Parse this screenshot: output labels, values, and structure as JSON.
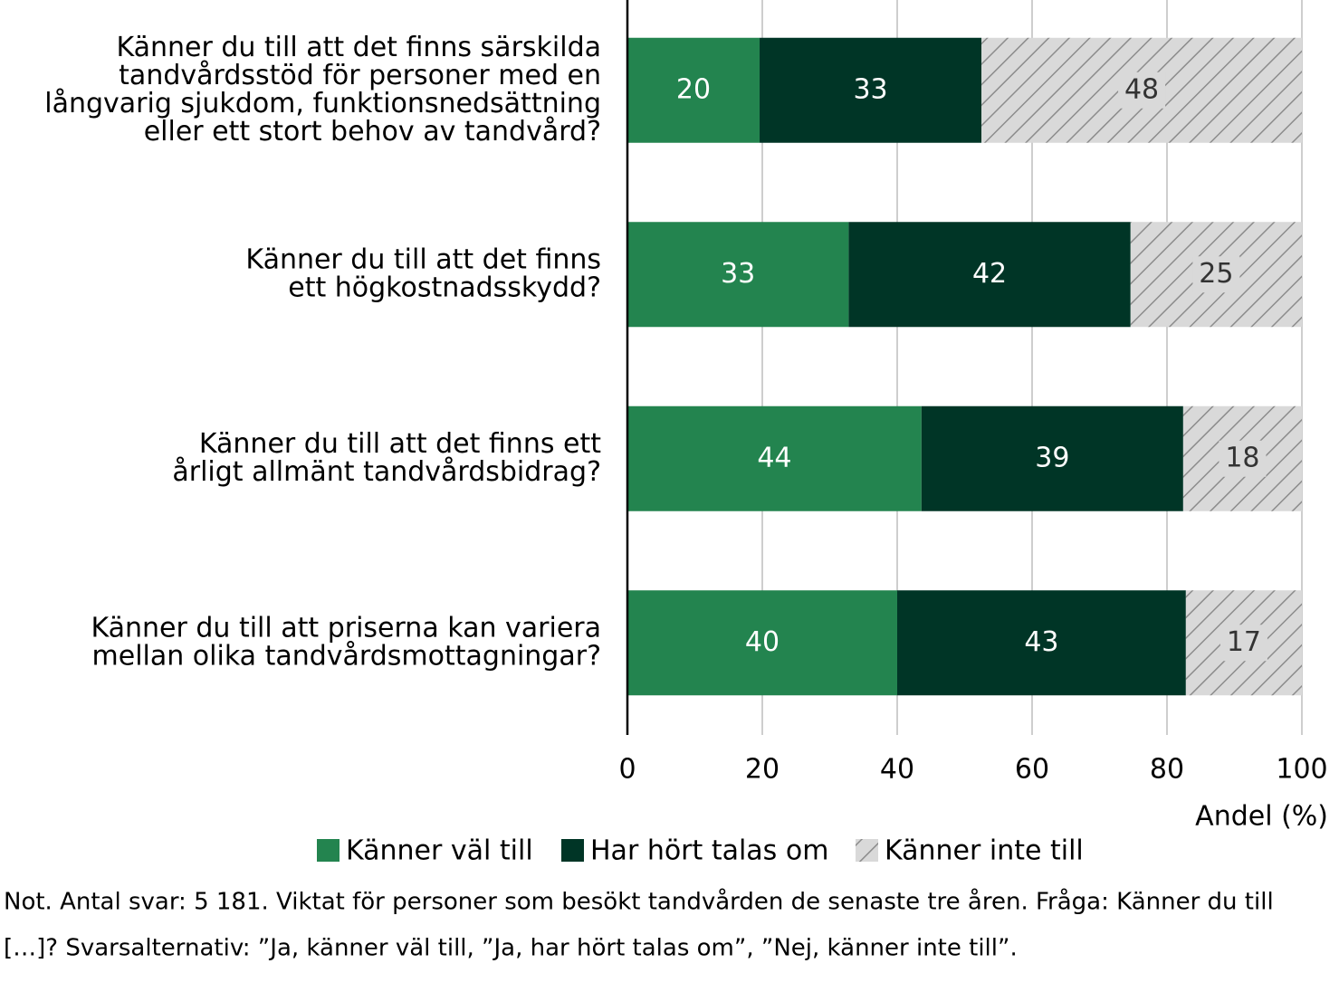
{
  "chart_data": {
    "type": "stacked-barh",
    "categories": [
      [
        "Känner du till att det finns särskilda",
        "tandvårdsstöd för personer med en",
        "långvarig sjukdom, funktionsnedsättning",
        "eller ett stort behov av tandvård?"
      ],
      [
        "Känner du till att det finns",
        "ett högkostnadsskydd?"
      ],
      [
        "Känner du till att det finns ett",
        "årligt allmänt tandvårdsbidrag?"
      ],
      [
        "Känner du till att priserna kan variera",
        "mellan olika tandvårdsmottagningar?"
      ]
    ],
    "series": [
      {
        "name": "Känner väl till",
        "color": "#23844f",
        "values": [
          19.6,
          32.8,
          43.6,
          40.0
        ],
        "value_labels": [
          "20",
          "33",
          "44",
          "40"
        ]
      },
      {
        "name": "Har hört talas om",
        "color": "#003526",
        "values": [
          32.9,
          41.8,
          38.8,
          42.8
        ],
        "value_labels": [
          "33",
          "42",
          "39",
          "43"
        ]
      },
      {
        "name": "Känner inte till",
        "color": "#d9d9d9",
        "hatch": true,
        "values": [
          47.5,
          25.4,
          17.6,
          17.2
        ],
        "value_labels": [
          "48",
          "25",
          "18",
          "17"
        ]
      }
    ],
    "xlim": [
      0,
      100
    ],
    "xticks": [
      0,
      20,
      40,
      60,
      80,
      100
    ],
    "grid": true,
    "xlabel": "Andel (%)",
    "note": [
      "Not. Antal svar: 5 181. Viktat för personer som besökt tandvården de senaste tre åren. Fråga: Känner du till",
      "[…]? Svarsalternativ: ”Ja, känner väl till, ”Ja, har hört talas om”, ”Nej, känner inte till”."
    ]
  }
}
